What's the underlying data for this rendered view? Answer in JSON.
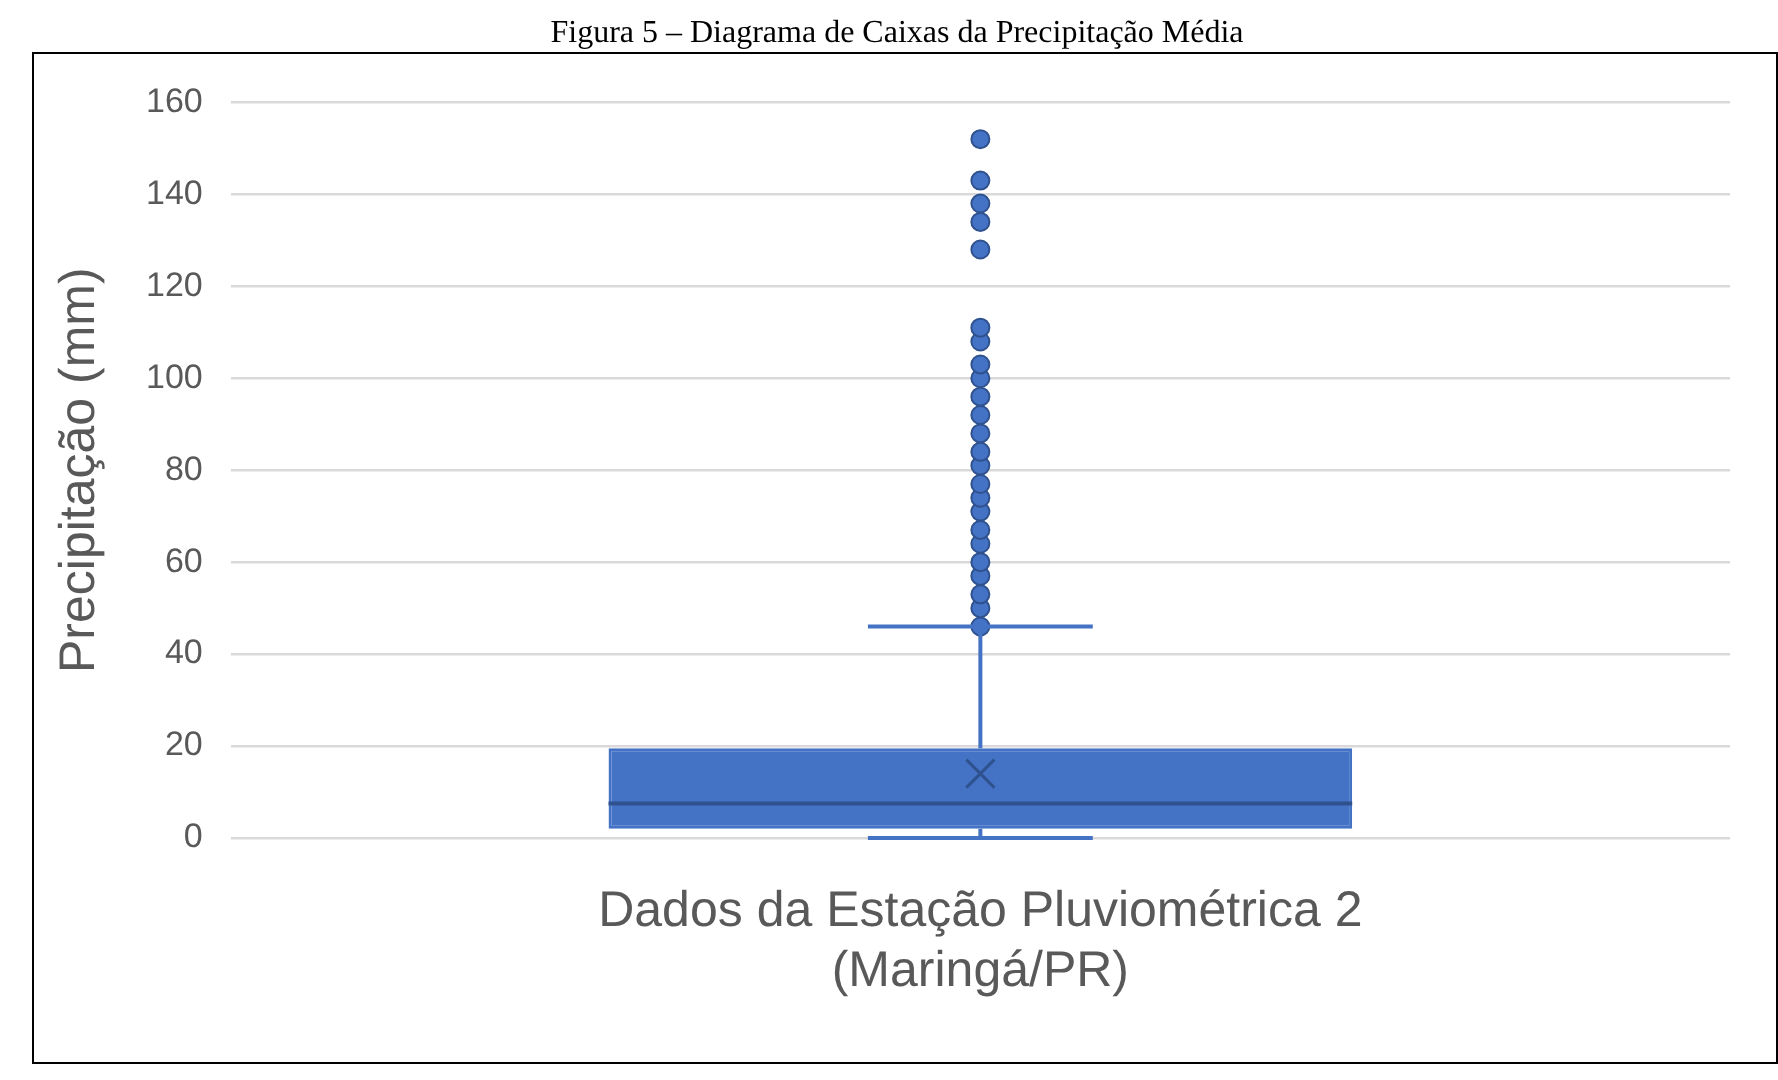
{
  "chart_data": {
    "type": "box",
    "title": "Figura 5 – Diagrama de Caixas da Precipitação Média",
    "ylabel": "Precipitação (mm)",
    "categories": [
      "Dados da Estação Pluviométrica 2 (Maringá/PR)"
    ],
    "series": [
      {
        "color": "#4472c4",
        "boxes": [
          {
            "low": 0,
            "q1": 2,
            "median": 7.5,
            "q3": 19.5,
            "high": 46,
            "mean": 14,
            "outliers": [
              46,
              50,
              53,
              57,
              60,
              64,
              67,
              71,
              74,
              77,
              81,
              84,
              88,
              92,
              96,
              100,
              103,
              108,
              111,
              128,
              134,
              138,
              143,
              152
            ]
          }
        ]
      }
    ],
    "ylim": [
      0,
      160
    ],
    "yticks": [
      0,
      20,
      40,
      60,
      80,
      100,
      120,
      140,
      160
    ],
    "grid": "y",
    "legend": false,
    "marker": "circle"
  }
}
